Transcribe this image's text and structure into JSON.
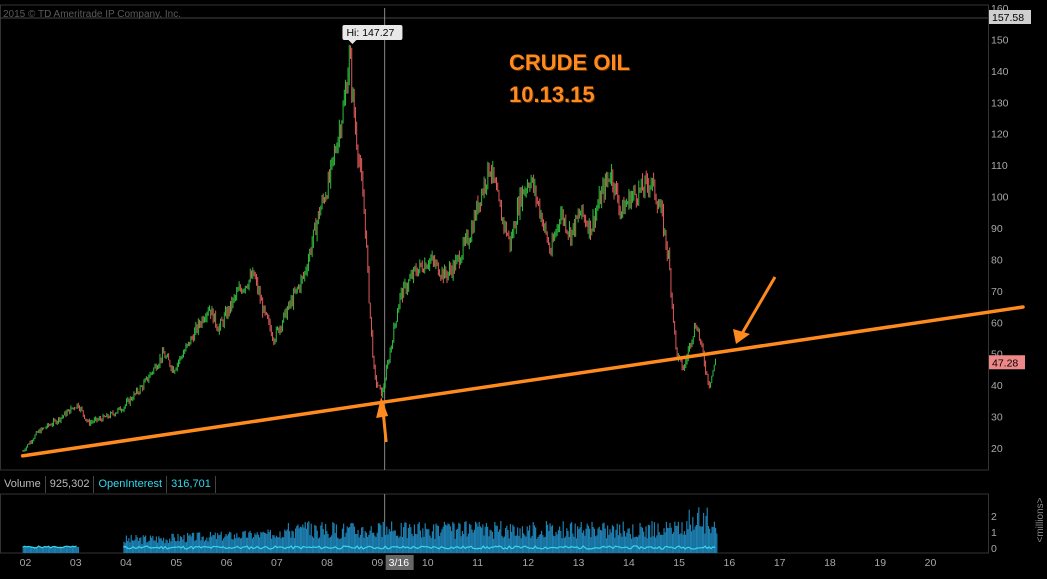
{
  "copyright": "2015 © TD Ameritrade IP Company, Inc.",
  "annotation": {
    "title": "CRUDE OIL",
    "date": "10.13.15"
  },
  "chart_data": {
    "type": "candlestick",
    "xlabel": "",
    "ylabel": "",
    "x_ticks": [
      "02",
      "03",
      "04",
      "05",
      "06",
      "07",
      "08",
      "09",
      "10",
      "11",
      "12",
      "13",
      "14",
      "15",
      "16",
      "17",
      "18",
      "19",
      "20"
    ],
    "y_ticks": [
      20,
      30,
      40,
      50,
      60,
      70,
      80,
      90,
      100,
      110,
      120,
      130,
      140,
      150
    ],
    "ylim": [
      13,
      160
    ],
    "y_top_tick": "160",
    "high_label": "Hi: 147.27",
    "high_value": 147.27,
    "last_price": "47.28",
    "top_price": "157.58",
    "crosshair_x_label": "3/16",
    "series_close": [
      {
        "x": 2002.0,
        "y": 19
      },
      {
        "x": 2002.3,
        "y": 25
      },
      {
        "x": 2002.7,
        "y": 29
      },
      {
        "x": 2003.1,
        "y": 34
      },
      {
        "x": 2003.3,
        "y": 28
      },
      {
        "x": 2003.7,
        "y": 30
      },
      {
        "x": 2004.0,
        "y": 33
      },
      {
        "x": 2004.4,
        "y": 40
      },
      {
        "x": 2004.8,
        "y": 50
      },
      {
        "x": 2005.0,
        "y": 45
      },
      {
        "x": 2005.3,
        "y": 53
      },
      {
        "x": 2005.7,
        "y": 65
      },
      {
        "x": 2005.9,
        "y": 58
      },
      {
        "x": 2006.3,
        "y": 70
      },
      {
        "x": 2006.6,
        "y": 75
      },
      {
        "x": 2006.8,
        "y": 63
      },
      {
        "x": 2007.0,
        "y": 55
      },
      {
        "x": 2007.3,
        "y": 65
      },
      {
        "x": 2007.6,
        "y": 75
      },
      {
        "x": 2007.9,
        "y": 95
      },
      {
        "x": 2008.1,
        "y": 105
      },
      {
        "x": 2008.4,
        "y": 130
      },
      {
        "x": 2008.5,
        "y": 145
      },
      {
        "x": 2008.6,
        "y": 125
      },
      {
        "x": 2008.8,
        "y": 95
      },
      {
        "x": 2008.9,
        "y": 65
      },
      {
        "x": 2009.0,
        "y": 42
      },
      {
        "x": 2009.15,
        "y": 37
      },
      {
        "x": 2009.3,
        "y": 50
      },
      {
        "x": 2009.5,
        "y": 68
      },
      {
        "x": 2009.8,
        "y": 76
      },
      {
        "x": 2010.1,
        "y": 80
      },
      {
        "x": 2010.4,
        "y": 75
      },
      {
        "x": 2010.6,
        "y": 78
      },
      {
        "x": 2010.9,
        "y": 88
      },
      {
        "x": 2011.1,
        "y": 100
      },
      {
        "x": 2011.3,
        "y": 110
      },
      {
        "x": 2011.5,
        "y": 95
      },
      {
        "x": 2011.7,
        "y": 85
      },
      {
        "x": 2011.9,
        "y": 100
      },
      {
        "x": 2012.1,
        "y": 106
      },
      {
        "x": 2012.3,
        "y": 95
      },
      {
        "x": 2012.5,
        "y": 82
      },
      {
        "x": 2012.7,
        "y": 95
      },
      {
        "x": 2012.9,
        "y": 88
      },
      {
        "x": 2013.1,
        "y": 95
      },
      {
        "x": 2013.3,
        "y": 90
      },
      {
        "x": 2013.5,
        "y": 100
      },
      {
        "x": 2013.7,
        "y": 108
      },
      {
        "x": 2013.9,
        "y": 95
      },
      {
        "x": 2014.1,
        "y": 100
      },
      {
        "x": 2014.3,
        "y": 102
      },
      {
        "x": 2014.5,
        "y": 105
      },
      {
        "x": 2014.7,
        "y": 95
      },
      {
        "x": 2014.85,
        "y": 80
      },
      {
        "x": 2015.0,
        "y": 50
      },
      {
        "x": 2015.15,
        "y": 45
      },
      {
        "x": 2015.3,
        "y": 55
      },
      {
        "x": 2015.4,
        "y": 60
      },
      {
        "x": 2015.55,
        "y": 48
      },
      {
        "x": 2015.65,
        "y": 40
      },
      {
        "x": 2015.78,
        "y": 47.28
      }
    ],
    "trendline": [
      {
        "x": 2002.0,
        "y": 17.5
      },
      {
        "x": 2021.2,
        "y": 63.2
      }
    ],
    "volume_panel": {
      "labels": [
        "Volume",
        "925,302",
        "OpenInterest",
        "316,701"
      ],
      "y_ticks": [
        "2",
        "1",
        "0"
      ],
      "unit": "<millions>"
    }
  },
  "colors": {
    "up": "#2fbf3f",
    "down": "#e05a5a",
    "trend": "#ff8a1e",
    "volume": "#1e7fb0",
    "openinterest": "#34d8f0"
  }
}
